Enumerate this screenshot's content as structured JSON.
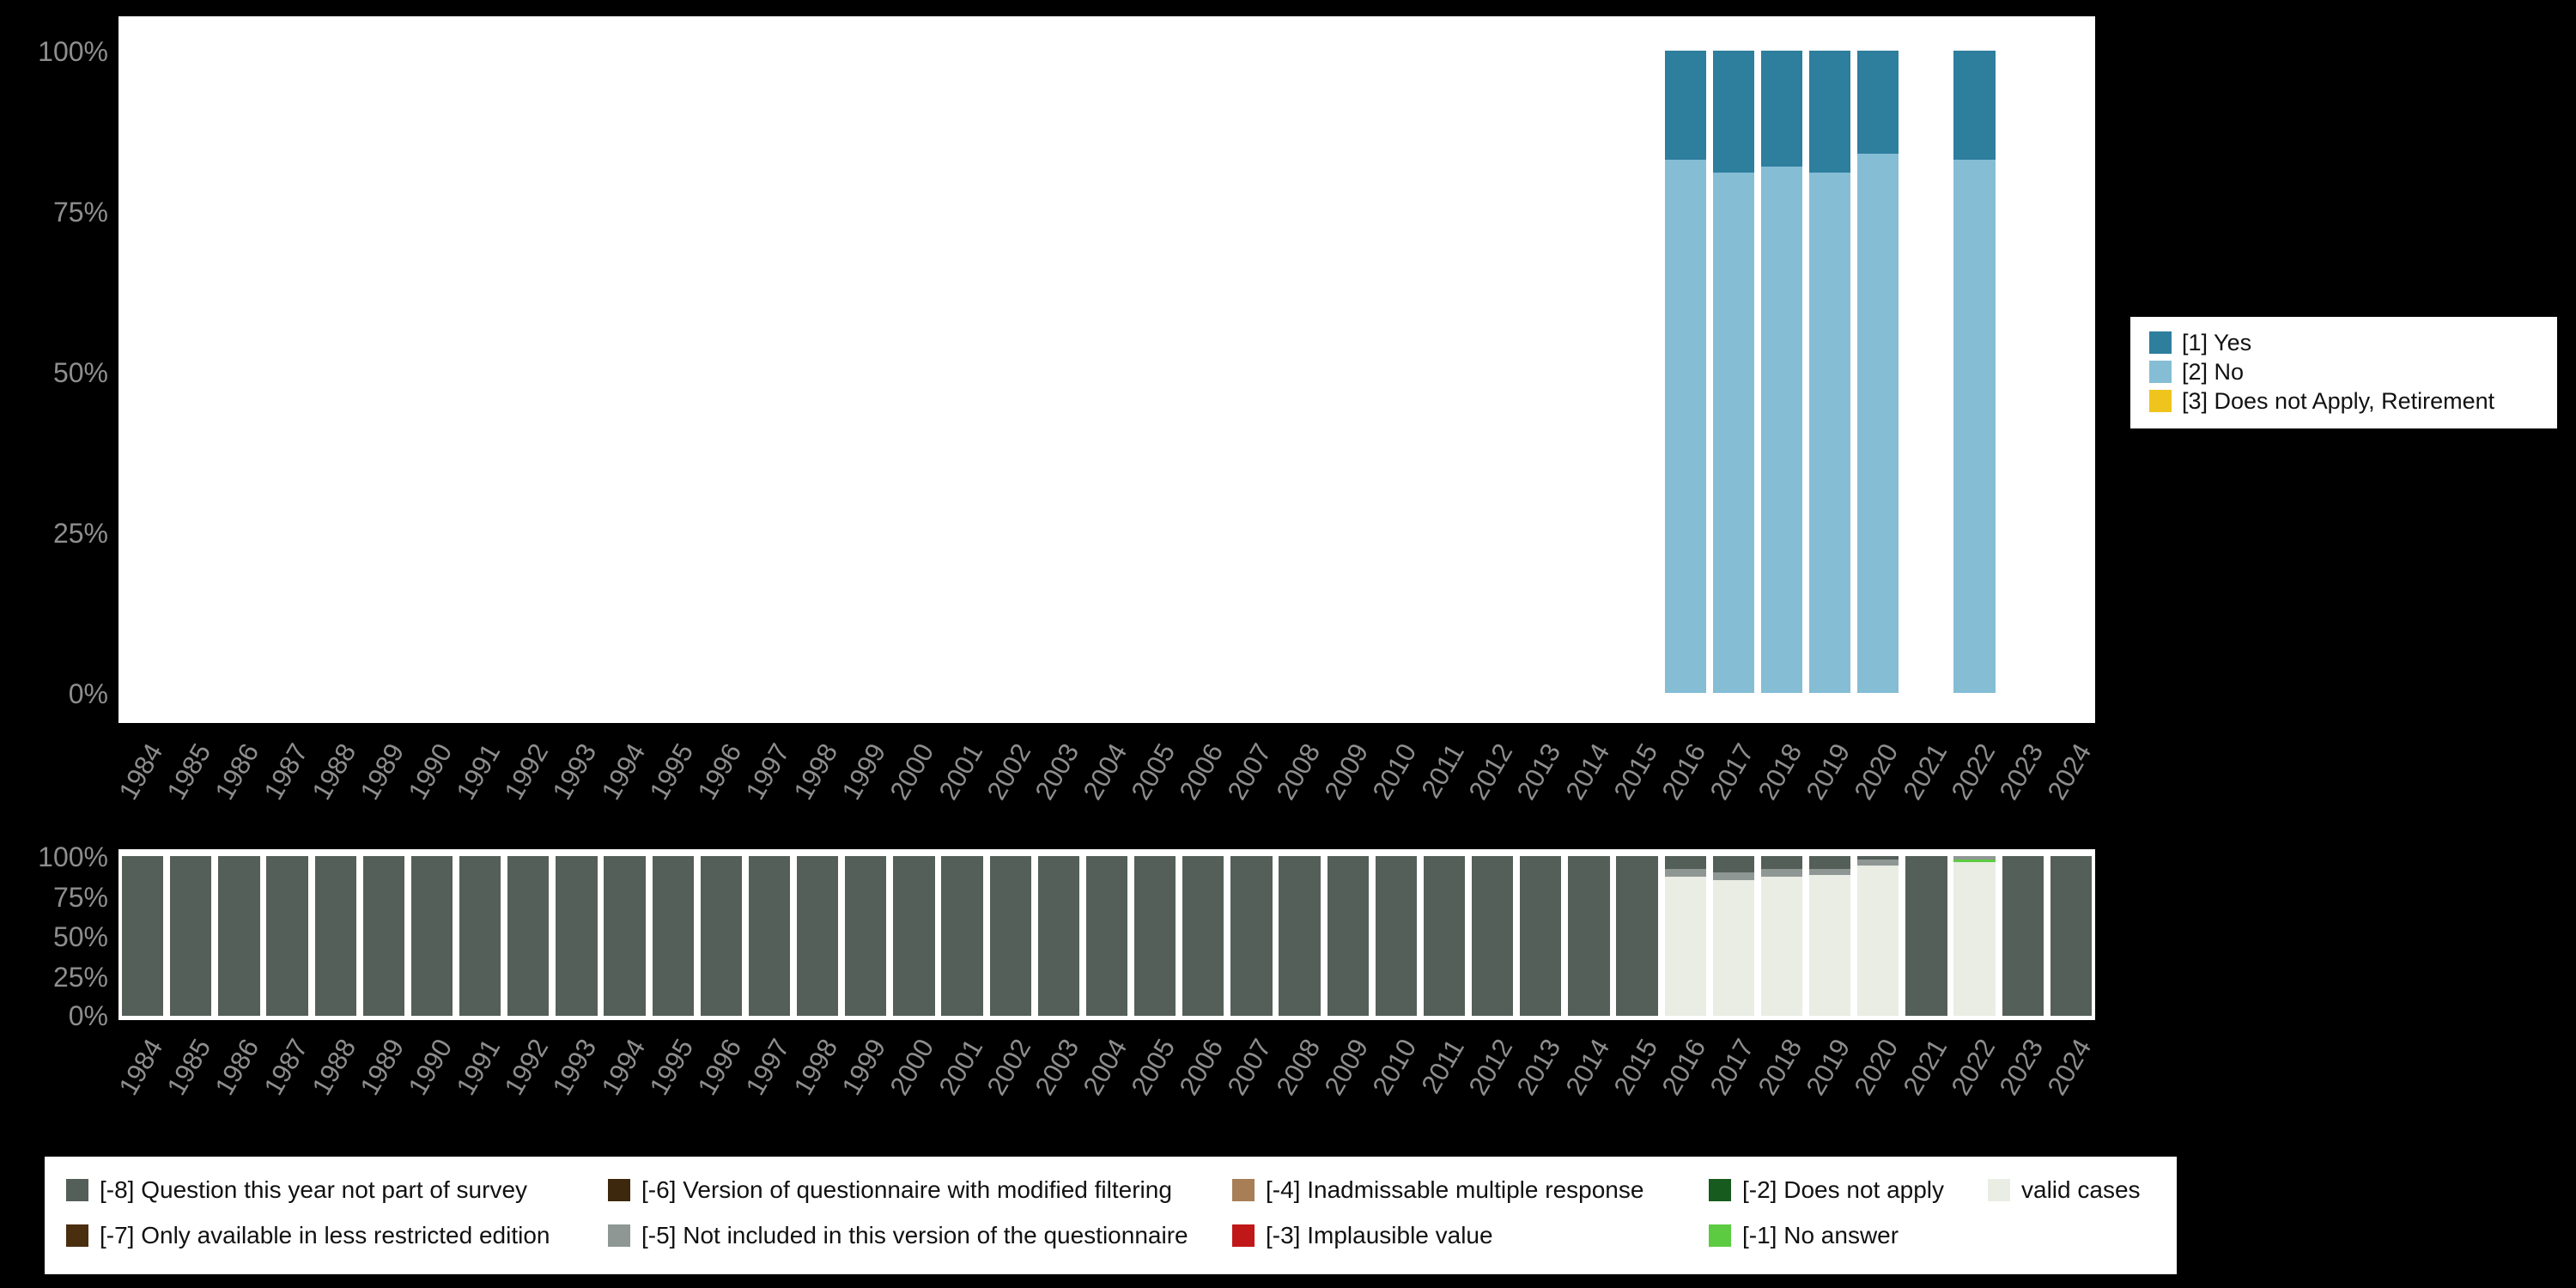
{
  "colors": {
    "background": "#000000",
    "panel": "#ffffff",
    "axis_text": "#8e8e8e",
    "legend_text": "#111111"
  },
  "yticks": [
    "0%",
    "25%",
    "50%",
    "75%",
    "100%"
  ],
  "legend_top": {
    "position": "right",
    "items": [
      {
        "label": "[1] Yes",
        "color": "#2e7e9e"
      },
      {
        "label": "[2] No",
        "color": "#85bdd5"
      },
      {
        "label": "[3] Does not Apply, Retirement",
        "color": "#efc41c"
      }
    ]
  },
  "legend_bottom": {
    "position": "bottom",
    "items": [
      {
        "label": "[-8] Question this year not part of survey",
        "color": "#545f59"
      },
      {
        "label": "[-6] Version of questionnaire with modified filtering",
        "color": "#3d280e"
      },
      {
        "label": "[-4] Inadmissable multiple response",
        "color": "#a87e57"
      },
      {
        "label": "[-2] Does not apply",
        "color": "#175b1e"
      },
      {
        "label": "valid cases",
        "color": "#e9ede4"
      },
      {
        "label": "[-7] Only available in less restricted edition",
        "color": "#4a2e10"
      },
      {
        "label": "[-5] Not included in this version of the questionnaire",
        "color": "#8f9794"
      },
      {
        "label": "[-3] Implausible value",
        "color": "#c01718"
      },
      {
        "label": "[-1] No answer",
        "color": "#5dcb41"
      }
    ]
  },
  "chart_data": [
    {
      "type": "bar",
      "stacked": true,
      "title": "",
      "xlabel": "",
      "ylabel": "",
      "ylim": [
        0,
        100
      ],
      "yticks": [
        "0%",
        "25%",
        "50%",
        "75%",
        "100%"
      ],
      "grid": false,
      "legend_position": "right",
      "categories": [
        "1984",
        "1985",
        "1986",
        "1987",
        "1988",
        "1989",
        "1990",
        "1991",
        "1992",
        "1993",
        "1994",
        "1995",
        "1996",
        "1997",
        "1998",
        "1999",
        "2000",
        "2001",
        "2002",
        "2003",
        "2004",
        "2005",
        "2006",
        "2007",
        "2008",
        "2009",
        "2010",
        "2011",
        "2012",
        "2013",
        "2014",
        "2015",
        "2016",
        "2017",
        "2018",
        "2019",
        "2020",
        "2021",
        "2022",
        "2023",
        "2024"
      ],
      "series": [
        {
          "name": "[1] Yes",
          "color": "#2e7e9e",
          "values": [
            0,
            0,
            0,
            0,
            0,
            0,
            0,
            0,
            0,
            0,
            0,
            0,
            0,
            0,
            0,
            0,
            0,
            0,
            0,
            0,
            0,
            0,
            0,
            0,
            0,
            0,
            0,
            0,
            0,
            0,
            0,
            0,
            17,
            19,
            18,
            19,
            16,
            0,
            17,
            0,
            0
          ]
        },
        {
          "name": "[2] No",
          "color": "#85bdd5",
          "values": [
            0,
            0,
            0,
            0,
            0,
            0,
            0,
            0,
            0,
            0,
            0,
            0,
            0,
            0,
            0,
            0,
            0,
            0,
            0,
            0,
            0,
            0,
            0,
            0,
            0,
            0,
            0,
            0,
            0,
            0,
            0,
            0,
            83,
            81,
            82,
            81,
            84,
            0,
            83,
            0,
            0
          ]
        },
        {
          "name": "[3] Does not Apply, Retirement",
          "color": "#efc41c",
          "values": [
            0,
            0,
            0,
            0,
            0,
            0,
            0,
            0,
            0,
            0,
            0,
            0,
            0,
            0,
            0,
            0,
            0,
            0,
            0,
            0,
            0,
            0,
            0,
            0,
            0,
            0,
            0,
            0,
            0,
            0,
            0,
            0,
            0,
            0,
            0,
            0,
            0,
            0,
            0,
            0,
            0
          ]
        }
      ]
    },
    {
      "type": "bar",
      "stacked": true,
      "title": "",
      "xlabel": "",
      "ylabel": "",
      "ylim": [
        0,
        100
      ],
      "yticks": [
        "0%",
        "25%",
        "50%",
        "75%",
        "100%"
      ],
      "grid": false,
      "legend_position": "bottom",
      "categories": [
        "1984",
        "1985",
        "1986",
        "1987",
        "1988",
        "1989",
        "1990",
        "1991",
        "1992",
        "1993",
        "1994",
        "1995",
        "1996",
        "1997",
        "1998",
        "1999",
        "2000",
        "2001",
        "2002",
        "2003",
        "2004",
        "2005",
        "2006",
        "2007",
        "2008",
        "2009",
        "2010",
        "2011",
        "2012",
        "2013",
        "2014",
        "2015",
        "2016",
        "2017",
        "2018",
        "2019",
        "2020",
        "2021",
        "2022",
        "2023",
        "2024"
      ],
      "series": [
        {
          "name": "[-8] Question this year not part of survey",
          "color": "#545f59",
          "values": [
            100,
            100,
            100,
            100,
            100,
            100,
            100,
            100,
            100,
            100,
            100,
            100,
            100,
            100,
            100,
            100,
            100,
            100,
            100,
            100,
            100,
            100,
            100,
            100,
            100,
            100,
            100,
            100,
            100,
            100,
            100,
            100,
            8,
            10,
            8,
            8,
            2,
            100,
            0,
            100,
            100
          ]
        },
        {
          "name": "[-7] Only available in less restricted edition",
          "color": "#4a2e10",
          "values": [
            0,
            0,
            0,
            0,
            0,
            0,
            0,
            0,
            0,
            0,
            0,
            0,
            0,
            0,
            0,
            0,
            0,
            0,
            0,
            0,
            0,
            0,
            0,
            0,
            0,
            0,
            0,
            0,
            0,
            0,
            0,
            0,
            0,
            0,
            0,
            0,
            0,
            0,
            0,
            0,
            0
          ]
        },
        {
          "name": "[-6] Version of questionnaire with modified filtering",
          "color": "#3d280e",
          "values": [
            0,
            0,
            0,
            0,
            0,
            0,
            0,
            0,
            0,
            0,
            0,
            0,
            0,
            0,
            0,
            0,
            0,
            0,
            0,
            0,
            0,
            0,
            0,
            0,
            0,
            0,
            0,
            0,
            0,
            0,
            0,
            0,
            0,
            0,
            0,
            0,
            0,
            0,
            0,
            0,
            0
          ]
        },
        {
          "name": "[-5] Not included in this version of the questionnaire",
          "color": "#8f9794",
          "values": [
            0,
            0,
            0,
            0,
            0,
            0,
            0,
            0,
            0,
            0,
            0,
            0,
            0,
            0,
            0,
            0,
            0,
            0,
            0,
            0,
            0,
            0,
            0,
            0,
            0,
            0,
            0,
            0,
            0,
            0,
            0,
            0,
            5,
            5,
            5,
            4,
            4,
            0,
            2,
            0,
            0
          ]
        },
        {
          "name": "[-4] Inadmissable multiple response",
          "color": "#a87e57",
          "values": [
            0,
            0,
            0,
            0,
            0,
            0,
            0,
            0,
            0,
            0,
            0,
            0,
            0,
            0,
            0,
            0,
            0,
            0,
            0,
            0,
            0,
            0,
            0,
            0,
            0,
            0,
            0,
            0,
            0,
            0,
            0,
            0,
            0,
            0,
            0,
            0,
            0,
            0,
            0,
            0,
            0
          ]
        },
        {
          "name": "[-3] Implausible value",
          "color": "#c01718",
          "values": [
            0,
            0,
            0,
            0,
            0,
            0,
            0,
            0,
            0,
            0,
            0,
            0,
            0,
            0,
            0,
            0,
            0,
            0,
            0,
            0,
            0,
            0,
            0,
            0,
            0,
            0,
            0,
            0,
            0,
            0,
            0,
            0,
            0,
            0,
            0,
            0,
            0,
            0,
            0,
            0,
            0
          ]
        },
        {
          "name": "[-2] Does not apply",
          "color": "#175b1e",
          "values": [
            0,
            0,
            0,
            0,
            0,
            0,
            0,
            0,
            0,
            0,
            0,
            0,
            0,
            0,
            0,
            0,
            0,
            0,
            0,
            0,
            0,
            0,
            0,
            0,
            0,
            0,
            0,
            0,
            0,
            0,
            0,
            0,
            0,
            0,
            0,
            0,
            0,
            0,
            0,
            0,
            0
          ]
        },
        {
          "name": "[-1] No answer",
          "color": "#5dcb41",
          "values": [
            0,
            0,
            0,
            0,
            0,
            0,
            0,
            0,
            0,
            0,
            0,
            0,
            0,
            0,
            0,
            0,
            0,
            0,
            0,
            0,
            0,
            0,
            0,
            0,
            0,
            0,
            0,
            0,
            0,
            0,
            0,
            0,
            0,
            0,
            0,
            0,
            0,
            0,
            2,
            0,
            0
          ]
        },
        {
          "name": "valid cases",
          "color": "#e9ede4",
          "values": [
            0,
            0,
            0,
            0,
            0,
            0,
            0,
            0,
            0,
            0,
            0,
            0,
            0,
            0,
            0,
            0,
            0,
            0,
            0,
            0,
            0,
            0,
            0,
            0,
            0,
            0,
            0,
            0,
            0,
            0,
            0,
            0,
            87,
            85,
            87,
            88,
            94,
            0,
            96,
            0,
            0
          ]
        }
      ]
    }
  ]
}
